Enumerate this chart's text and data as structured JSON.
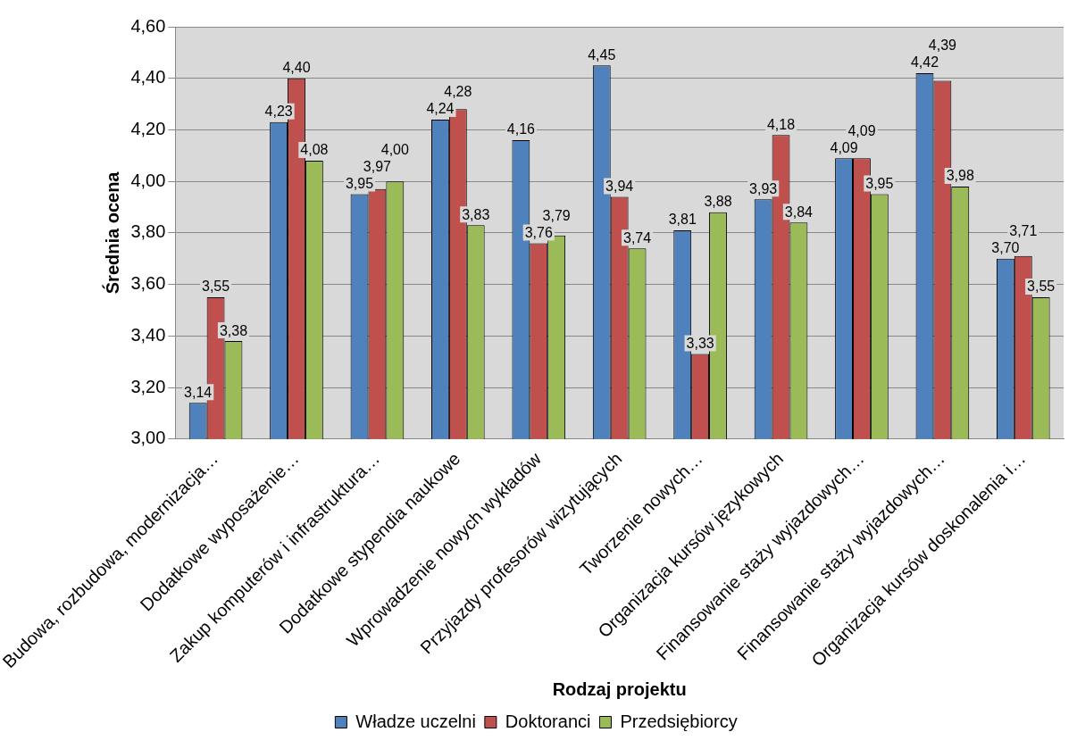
{
  "chart_data": {
    "type": "bar",
    "xlabel": "Rodzaj projektu",
    "ylabel": "Średnia ocena",
    "categories": [
      "Budowa, rozbudowa, modernizacja…",
      "Dodatkowe wyposażenie…",
      "Zakup komputerów i infrastruktura…",
      "Dodatkowe stypendia naukowe",
      "Wprowadzenie nowych wykładów",
      "Przyjazdy profesorów wizytujących",
      "Tworzenie nowych…",
      "Organizacja kursów językowych",
      "Finansowanie staży wyjazdowych…",
      "Finansowanie staży wyjazdowych…",
      "Organizacja kursów doskonalenia i…"
    ],
    "series": [
      {
        "name": "Władze uczelni",
        "color": "#4f81bd",
        "values": [
          3.14,
          4.23,
          3.95,
          4.24,
          4.16,
          4.45,
          3.81,
          3.93,
          4.09,
          4.42,
          3.7
        ],
        "value_labels": [
          "3,14",
          "4,23",
          "3,95",
          "4,24",
          "4,16",
          "4,45",
          "3,81",
          "3,93",
          "4,09",
          "4,42",
          "3,70"
        ]
      },
      {
        "name": "Doktoranci",
        "color": "#c0504d",
        "values": [
          3.55,
          4.4,
          3.97,
          4.28,
          3.76,
          3.94,
          3.33,
          4.18,
          4.09,
          4.39,
          3.71
        ],
        "value_labels": [
          "3,55",
          "4,40",
          "3,97",
          "4,28",
          "3,76",
          "3,94",
          "3,33",
          "4,18",
          "4,09",
          "4,39",
          "3,71"
        ]
      },
      {
        "name": "Przedsiębiorcy",
        "color": "#9bbb59",
        "values": [
          3.38,
          4.08,
          4.0,
          3.83,
          3.79,
          3.74,
          3.88,
          3.84,
          3.95,
          3.98,
          3.55
        ],
        "value_labels": [
          "3,38",
          "4,08",
          "4,00",
          "3,83",
          "3,79",
          "3,74",
          "3,88",
          "3,84",
          "3,95",
          "3,98",
          "3,55"
        ]
      }
    ],
    "ylim": [
      3.0,
      4.6
    ],
    "yticks": [
      {
        "value": 3.0,
        "label": "3,00"
      },
      {
        "value": 3.2,
        "label": "3,20"
      },
      {
        "value": 3.4,
        "label": "3,40"
      },
      {
        "value": 3.6,
        "label": "3,60"
      },
      {
        "value": 3.8,
        "label": "3,80"
      },
      {
        "value": 4.0,
        "label": "4,00"
      },
      {
        "value": 4.2,
        "label": "4,20"
      },
      {
        "value": 4.4,
        "label": "4,40"
      },
      {
        "value": 4.6,
        "label": "4,60"
      }
    ],
    "grid": "y",
    "legend": "bottom"
  }
}
